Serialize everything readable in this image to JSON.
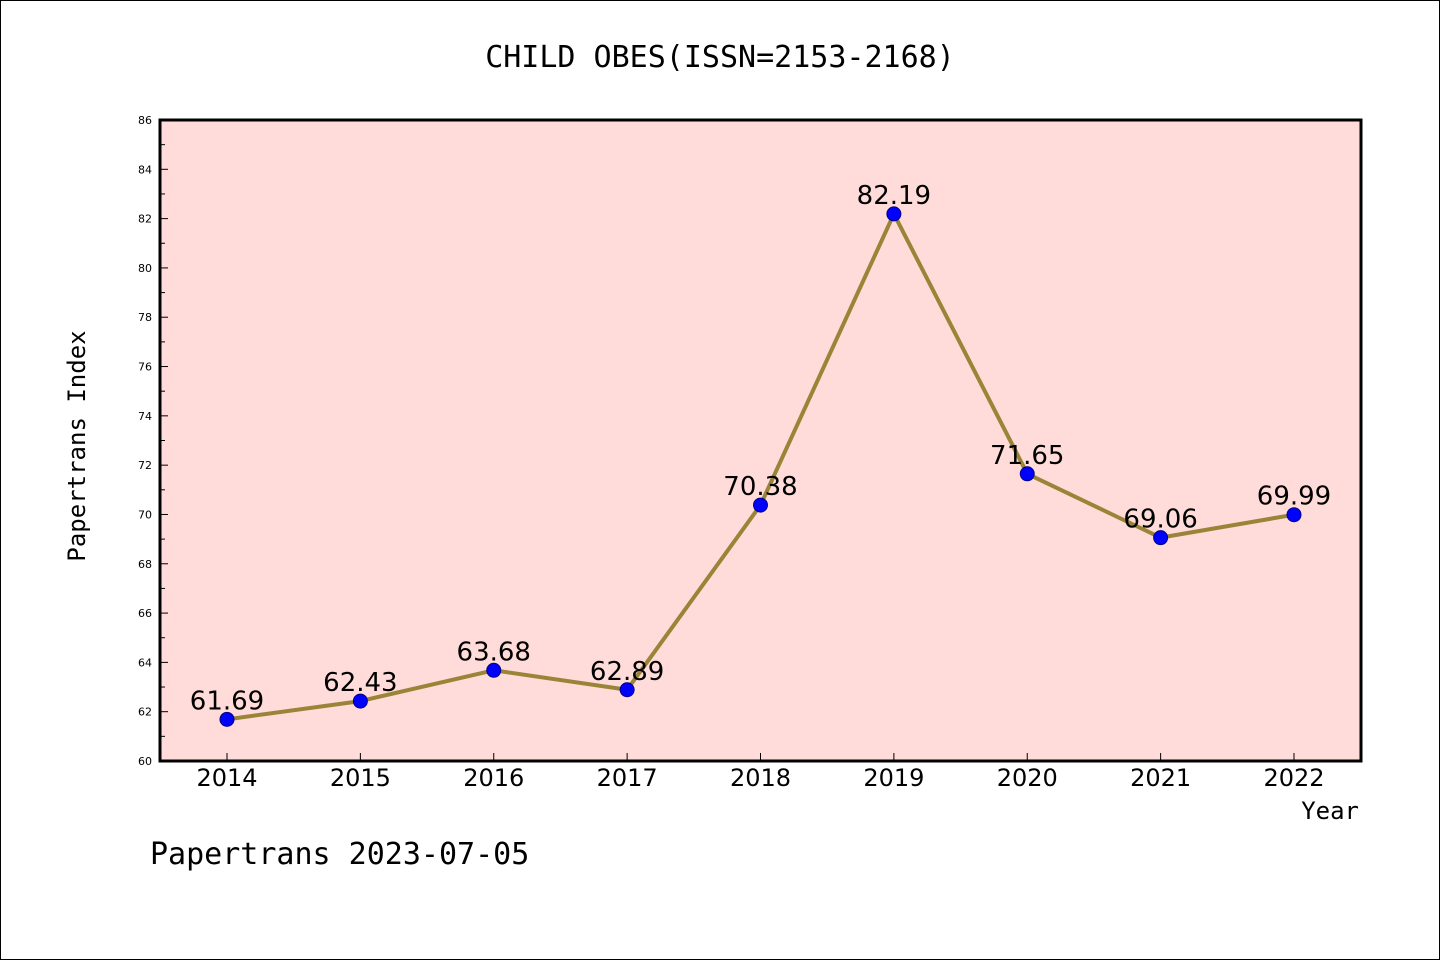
{
  "chart_data": {
    "type": "line",
    "title": "CHILD OBES(ISSN=2153-2168)",
    "xlabel": "Year",
    "ylabel": "Papertrans Index",
    "categories": [
      "2014",
      "2015",
      "2016",
      "2017",
      "2018",
      "2019",
      "2020",
      "2021",
      "2022"
    ],
    "series": [
      {
        "values": [
          61.69,
          62.43,
          63.68,
          62.89,
          70.38,
          82.19,
          71.65,
          69.06,
          69.99
        ],
        "labels": [
          "61.69",
          "62.43",
          "63.68",
          "62.89",
          "70.38",
          "82.19",
          "71.65",
          "69.06",
          "69.99"
        ]
      }
    ],
    "ylim": [
      60,
      86
    ],
    "yticks": [
      "60",
      "62",
      "64",
      "66",
      "68",
      "70",
      "72",
      "74",
      "76",
      "78",
      "80",
      "82",
      "84",
      "86"
    ],
    "grid": false,
    "legend": "none",
    "colors": {
      "plot_background": "#ffdcd9",
      "line": "#9a8437",
      "marker_fill": "#0000ff",
      "marker_stroke": "#00008b",
      "axis": "#000000"
    }
  },
  "footer": {
    "watermark": "Papertrans 2023-07-05"
  }
}
